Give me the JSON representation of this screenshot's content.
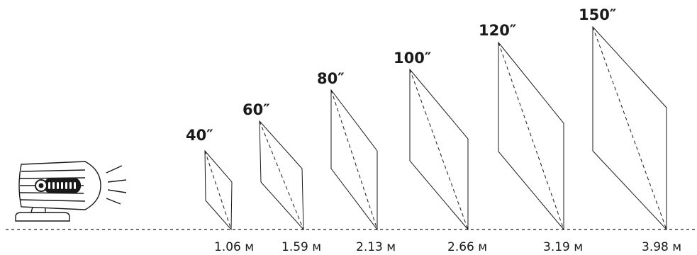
{
  "diagram": {
    "screens": [
      {
        "size": "40″",
        "distance": "1.06 м"
      },
      {
        "size": "60″",
        "distance": "1.59 м"
      },
      {
        "size": "80″",
        "distance": "2.13 м"
      },
      {
        "size": "100″",
        "distance": "2.66 м"
      },
      {
        "size": "120″",
        "distance": "3.19 м"
      },
      {
        "size": "150″",
        "distance": "3.98 м"
      }
    ],
    "icon": "projector-icon"
  }
}
